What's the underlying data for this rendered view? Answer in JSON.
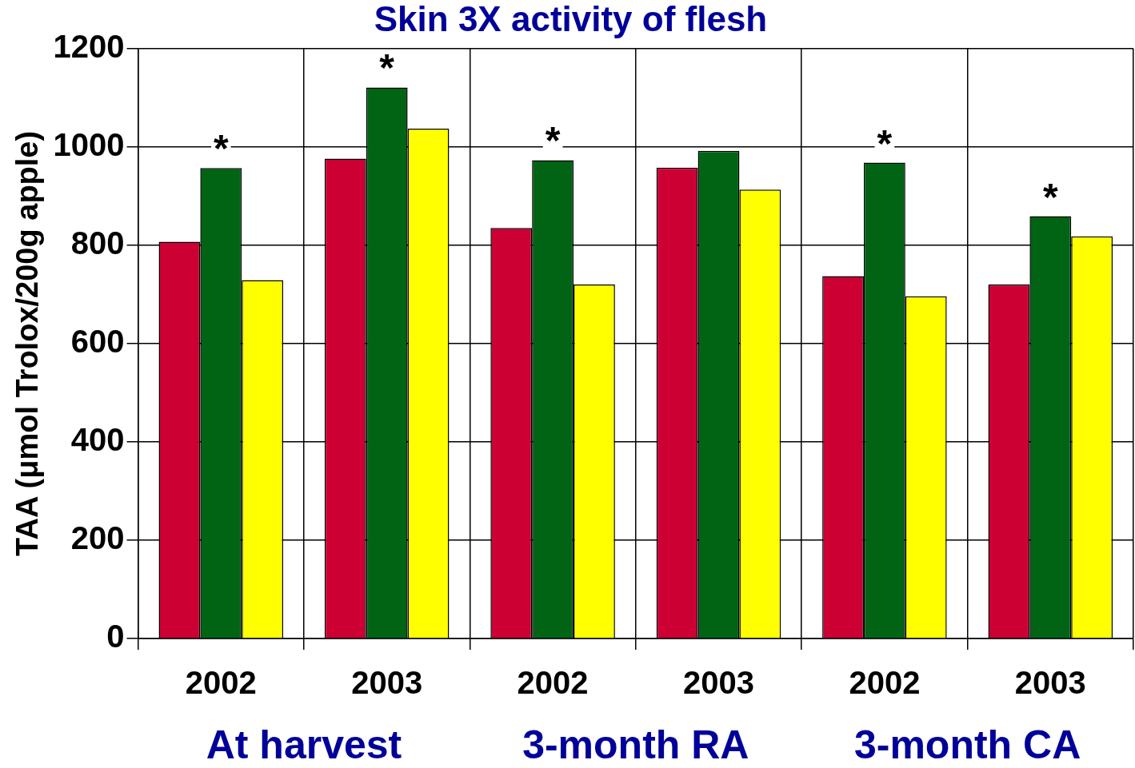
{
  "chart_data": {
    "type": "bar",
    "title": "Skin 3X activity of flesh",
    "ylabel": "TAA (μmol Trolox/200g apple)",
    "categories": [
      "2002",
      "2003",
      "2002",
      "2003",
      "2002",
      "2003"
    ],
    "series": [
      {
        "color": "#cc0033",
        "values": [
          807,
          976,
          835,
          958,
          737,
          720
        ]
      },
      {
        "color": "#006414",
        "values": [
          957,
          1121,
          973,
          992,
          968,
          859
        ],
        "value_labels": [
          "*",
          "*",
          "*",
          null,
          "*",
          "*"
        ]
      },
      {
        "color": "#ffff00",
        "values": [
          729,
          1037,
          720,
          913,
          696,
          818
        ]
      }
    ],
    "annotations": [
      "At harvest",
      "3-month RA",
      "3-month CA"
    ],
    "ylim": [
      0,
      1200
    ],
    "yticks": [
      0,
      200,
      400,
      600,
      800,
      1000,
      1200
    ],
    "grid": true,
    "legend": false
  }
}
